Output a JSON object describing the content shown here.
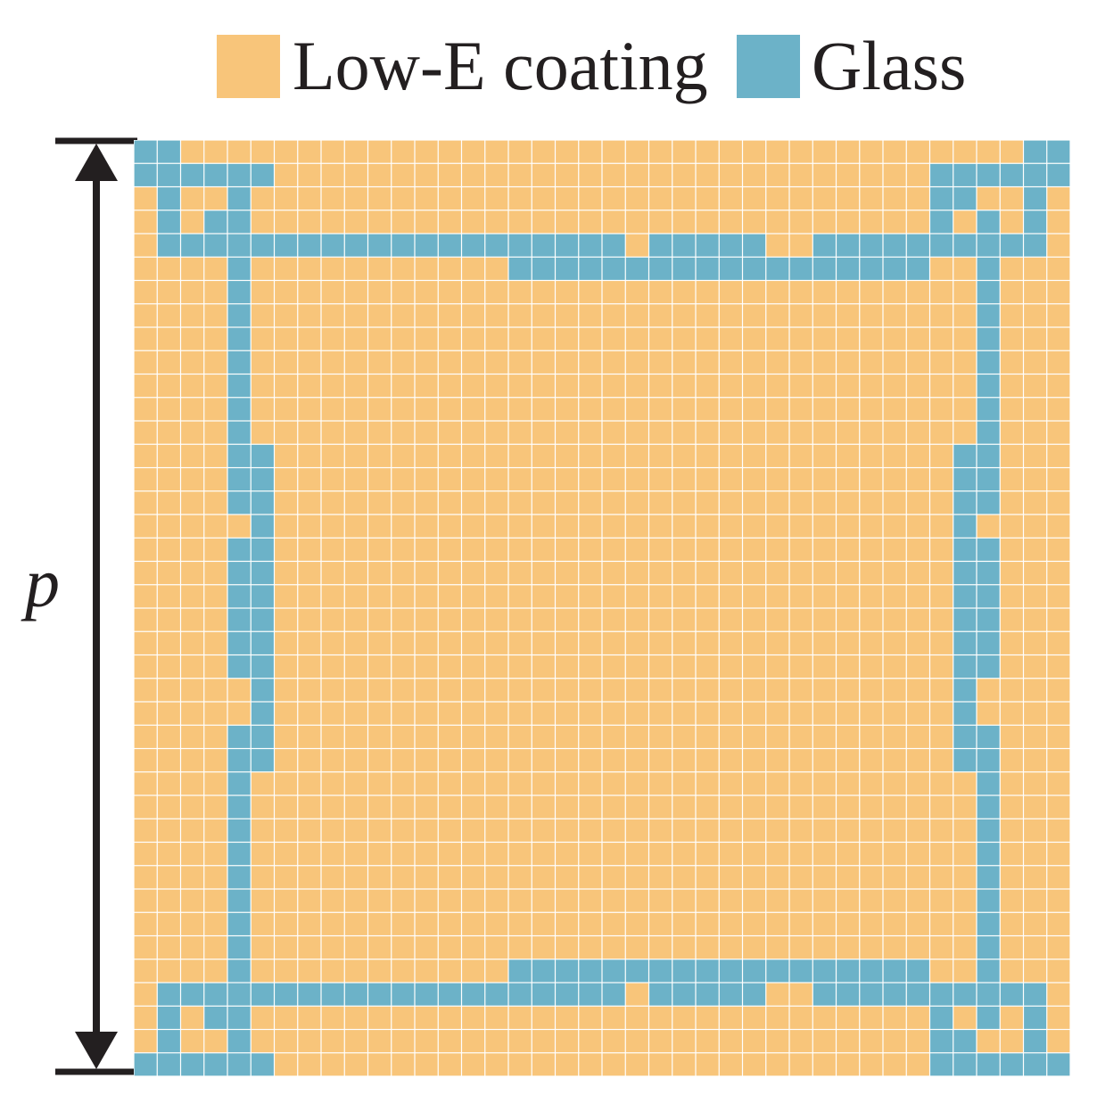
{
  "legend": {
    "items": [
      {
        "key": "coating",
        "label": "Low-E coating",
        "color": "#F8C57A"
      },
      {
        "key": "glass",
        "label": "Glass",
        "color": "#6CB2C8"
      }
    ]
  },
  "dimension": {
    "label": "p"
  },
  "grid": {
    "rows": 40,
    "cols": 40,
    "encoding": "1 = glass, 0 = low-e coating; row 0 at top",
    "pattern": [
      "1100000000000000000000000000000000000011",
      "1111110000000000000000000000000000111111",
      "0100100000000000000000000000000000110010",
      "0101100000000000000000000000000000101010",
      "0111111111111111111110111110011111111110",
      "0000100000000000111111111111111111001000",
      "0000100000000000000000000000000000001000",
      "0000100000000000000000000000000000001000",
      "0000100000000000000000000000000000001000",
      "0000100000000000000000000000000000001000",
      "0000100000000000000000000000000000001000",
      "0000100000000000000000000000000000001000",
      "0000100000000000000000000000000000001000",
      "0000110000000000000000000000000000011000",
      "0000110000000000000000000000000000011000",
      "0000110000000000000000000000000000011000",
      "0000010000000000000000000000000000010000",
      "0000110000000000000000000000000000011000",
      "0000110000000000000000000000000000011000",
      "0000110000000000000000000000000000011000",
      "0000110000000000000000000000000000011000",
      "0000110000000000000000000000000000011000",
      "0000110000000000000000000000000000011000",
      "0000010000000000000000000000000000010000",
      "0000010000000000000000000000000000010000",
      "0000110000000000000000000000000000011000",
      "0000110000000000000000000000000000011000",
      "0000100000000000000000000000000000001000",
      "0000100000000000000000000000000000001000",
      "0000100000000000000000000000000000001000",
      "0000100000000000000000000000000000001000",
      "0000100000000000000000000000000000001000",
      "0000100000000000000000000000000000001000",
      "0000100000000000000000000000000000001000",
      "0000100000000000000000000000000000001000",
      "0000100000000000111111111111111111001000",
      "0111111111111111111110111110011111111110",
      "0101100000000000000000000000000000101010",
      "0100100000000000000000000000000000110010",
      "1111110000000000000000000000000000111111"
    ]
  }
}
